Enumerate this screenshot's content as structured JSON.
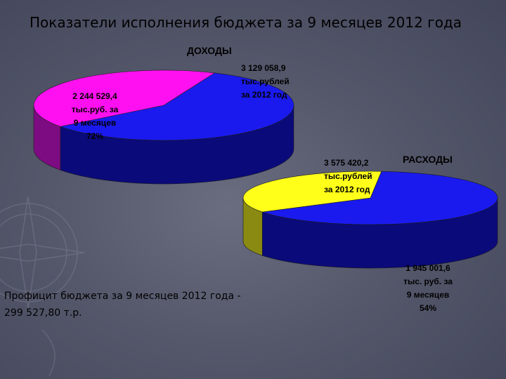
{
  "slide": {
    "title": "Показатели исполнения бюджета  за 9 месяцев 2012 года"
  },
  "surplus": {
    "line1": "Профицит бюджета за 9 месяцев 2012 года -",
    "line2": "299 527,80 т.р."
  },
  "chart_data": [
    {
      "type": "pie",
      "title": "ДОХОДЫ",
      "slices": [
        {
          "value": 3129058.9,
          "color": "#1a1aee",
          "side_color": "#0a0a7a",
          "label_lines": [
            "3 129 058,9",
            "тыс.рублей",
            "за 2012 год"
          ]
        },
        {
          "value": 2244529.4,
          "color": "#ff10f0",
          "side_color": "#7d0c82",
          "label_lines": [
            "2 244 529,4",
            "тыс.руб. за",
            "9 месяцев",
            "72%"
          ]
        }
      ]
    },
    {
      "type": "pie",
      "title": "РАСХОДЫ",
      "slices": [
        {
          "value": 3575420.2,
          "color": "#1a1aee",
          "side_color": "#0a0a7a",
          "label_lines": [
            "3 575 420,2",
            "тыс.рублей",
            "за 2012 год"
          ]
        },
        {
          "value": 1945001.6,
          "color": "#ffff1a",
          "side_color": "#8a8a12",
          "label_lines": [
            "1 945 001,6",
            "тыс. руб. за",
            "9 месяцев",
            "54%"
          ]
        }
      ]
    }
  ]
}
